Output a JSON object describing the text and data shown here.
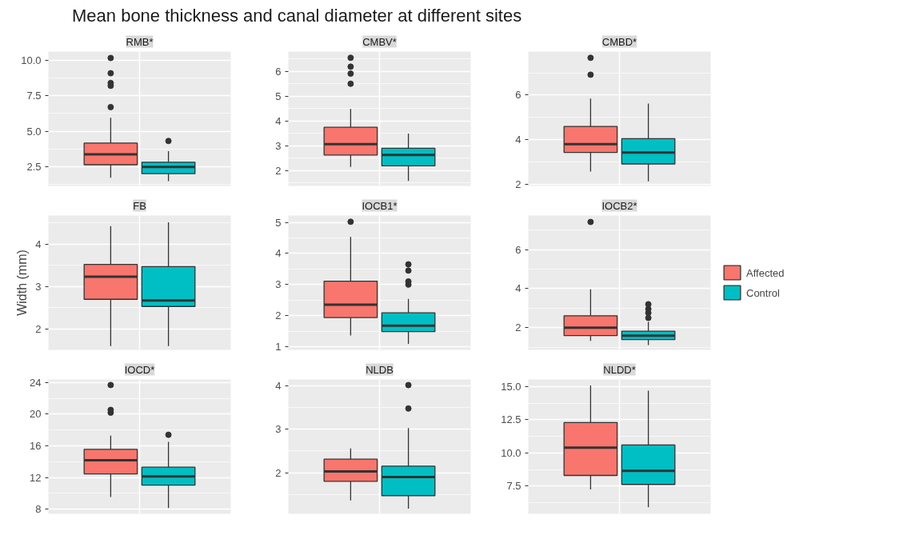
{
  "chart_data": [
    {
      "type": "box",
      "title": "RMB*",
      "annotations": [
        "Mean bone thickness and canal diameter at different sites"
      ],
      "categories": [
        null
      ],
      "ylim": [
        1.16,
        10.6
      ],
      "yticks": [
        2.5,
        {
          "value": 5,
          "label": "5.0"
        },
        7.5,
        {
          "value": 10,
          "label": "10.0"
        }
      ],
      "grid": true,
      "tick_labels": "y",
      "series": [
        {
          "color": "#f8766d",
          "boxes": [
            {
              "low": 1.73,
              "q1": 2.65,
              "median": 3.38,
              "q3": 4.17,
              "high": 5.95,
              "outliers": [
                10.15,
                9.08,
                8.39,
                8.2,
                6.7
              ]
            }
          ]
        },
        {
          "color": "#00bfc4",
          "boxes": [
            {
              "low": 1.5,
              "q1": 2.02,
              "median": 2.5,
              "q3": 2.83,
              "high": 3.6,
              "outliers": [
                4.32
              ]
            }
          ]
        }
      ]
    },
    {
      "type": "box",
      "title": "CMBV*",
      "categories": [
        null
      ],
      "ylim": [
        1.37,
        6.8
      ],
      "yticks": [
        2,
        3,
        4,
        5,
        6
      ],
      "grid": true,
      "tick_labels": "y",
      "series": [
        {
          "color": "#f8766d",
          "boxes": [
            {
              "low": 2.14,
              "q1": 2.62,
              "median": 3.06,
              "q3": 3.74,
              "high": 4.48,
              "outliers": [
                6.55,
                6.19,
                5.91,
                5.5
              ]
            }
          ]
        },
        {
          "color": "#00bfc4",
          "boxes": [
            {
              "low": 1.57,
              "q1": 2.18,
              "median": 2.62,
              "q3": 2.89,
              "high": 3.49
            }
          ]
        }
      ]
    },
    {
      "type": "box",
      "title": "CMBD*",
      "categories": [
        null
      ],
      "ylim": [
        1.91,
        7.96
      ],
      "yticks": [
        2,
        4,
        6
      ],
      "grid": true,
      "tick_labels": "y",
      "series": [
        {
          "color": "#f8766d",
          "boxes": [
            {
              "low": 2.56,
              "q1": 3.42,
              "median": 3.79,
              "q3": 4.59,
              "high": 5.84,
              "outliers": [
                7.68,
                6.92
              ]
            }
          ]
        },
        {
          "color": "#00bfc4",
          "boxes": [
            {
              "low": 2.12,
              "q1": 2.9,
              "median": 3.41,
              "q3": 4.04,
              "high": 5.62
            }
          ]
        }
      ]
    },
    {
      "type": "box",
      "title": "FB",
      "ylabel": "Width (mm)",
      "categories": [
        null
      ],
      "ylim": [
        1.51,
        4.67
      ],
      "yticks": [
        2,
        3,
        4
      ],
      "grid": true,
      "tick_labels": "y",
      "series": [
        {
          "color": "#f8766d",
          "boxes": [
            {
              "low": 1.6,
              "q1": 2.7,
              "median": 3.23,
              "q3": 3.52,
              "high": 4.42
            }
          ]
        },
        {
          "color": "#00bfc4",
          "boxes": [
            {
              "low": 1.6,
              "q1": 2.53,
              "median": 2.67,
              "q3": 3.47,
              "high": 4.51
            }
          ]
        }
      ]
    },
    {
      "type": "box",
      "title": "IOCB1*",
      "categories": [
        null
      ],
      "ylim": [
        0.9,
        5.22
      ],
      "yticks": [
        1,
        2,
        3,
        4,
        5
      ],
      "grid": true,
      "tick_labels": "y",
      "series": [
        {
          "color": "#f8766d",
          "boxes": [
            {
              "low": 1.36,
              "q1": 1.94,
              "median": 2.35,
              "q3": 3.11,
              "high": 4.53,
              "outliers": [
                5.02
              ]
            }
          ]
        },
        {
          "color": "#00bfc4",
          "boxes": [
            {
              "low": 1.09,
              "q1": 1.49,
              "median": 1.68,
              "q3": 2.09,
              "high": 2.54,
              "outliers": [
                3.65,
                3.45,
                3.1,
                3.0
              ]
            }
          ]
        }
      ]
    },
    {
      "type": "box",
      "title": "IOCB2*",
      "categories": [
        null
      ],
      "ylim": [
        0.86,
        7.75
      ],
      "yticks": [
        2,
        4,
        6
      ],
      "grid": true,
      "tick_labels": "y",
      "legend": "right",
      "series": [
        {
          "name": "Affected",
          "color": "#f8766d",
          "boxes": [
            {
              "low": 1.32,
              "q1": 1.59,
              "median": 2.0,
              "q3": 2.61,
              "high": 3.97,
              "outliers": [
                7.42
              ]
            }
          ]
        },
        {
          "name": "Control",
          "color": "#00bfc4",
          "boxes": [
            {
              "low": 1.11,
              "q1": 1.39,
              "median": 1.59,
              "q3": 1.82,
              "high": 2.3,
              "outliers": [
                3.2,
                2.96,
                2.76,
                2.5
              ]
            }
          ]
        }
      ]
    },
    {
      "type": "box",
      "title": "IOCD*",
      "categories": [
        null
      ],
      "ylim": [
        7.4,
        24.4
      ],
      "yticks": [
        8,
        12,
        16,
        20,
        24
      ],
      "grid": true,
      "tick_labels": "y",
      "series": [
        {
          "color": "#f8766d",
          "boxes": [
            {
              "low": 9.52,
              "q1": 12.45,
              "median": 14.17,
              "q3": 15.55,
              "high": 17.3,
              "outliers": [
                23.7,
                20.55,
                20.2
              ]
            }
          ]
        },
        {
          "color": "#00bfc4",
          "boxes": [
            {
              "low": 8.14,
              "q1": 11.03,
              "median": 12.14,
              "q3": 13.3,
              "high": 16.5,
              "outliers": [
                17.4
              ]
            }
          ]
        }
      ]
    },
    {
      "type": "box",
      "title": "NLDB",
      "categories": [
        null
      ],
      "ylim": [
        1.05,
        4.15
      ],
      "yticks": [
        2,
        3,
        4
      ],
      "grid": true,
      "tick_labels": "y",
      "series": [
        {
          "color": "#f8766d",
          "boxes": [
            {
              "low": 1.36,
              "q1": 1.8,
              "median": 2.03,
              "q3": 2.31,
              "high": 2.56
            }
          ]
        },
        {
          "color": "#00bfc4",
          "boxes": [
            {
              "low": 1.17,
              "q1": 1.47,
              "median": 1.9,
              "q3": 2.15,
              "high": 3.03,
              "outliers": [
                4.02,
                3.48
              ]
            }
          ]
        }
      ]
    },
    {
      "type": "box",
      "title": "NLDD*",
      "categories": [
        null
      ],
      "ylim": [
        5.4,
        15.55
      ],
      "yticks": [
        7.5,
        {
          "value": 10,
          "label": "10.0"
        },
        12.5,
        {
          "value": 15,
          "label": "15.0"
        }
      ],
      "grid": true,
      "tick_labels": "y",
      "series": [
        {
          "color": "#f8766d",
          "boxes": [
            {
              "low": 7.25,
              "q1": 8.3,
              "median": 10.4,
              "q3": 12.3,
              "high": 15.1
            }
          ]
        },
        {
          "color": "#00bfc4",
          "boxes": [
            {
              "low": 5.9,
              "q1": 7.62,
              "median": 8.65,
              "q3": 10.6,
              "high": 14.7
            }
          ]
        }
      ]
    }
  ]
}
